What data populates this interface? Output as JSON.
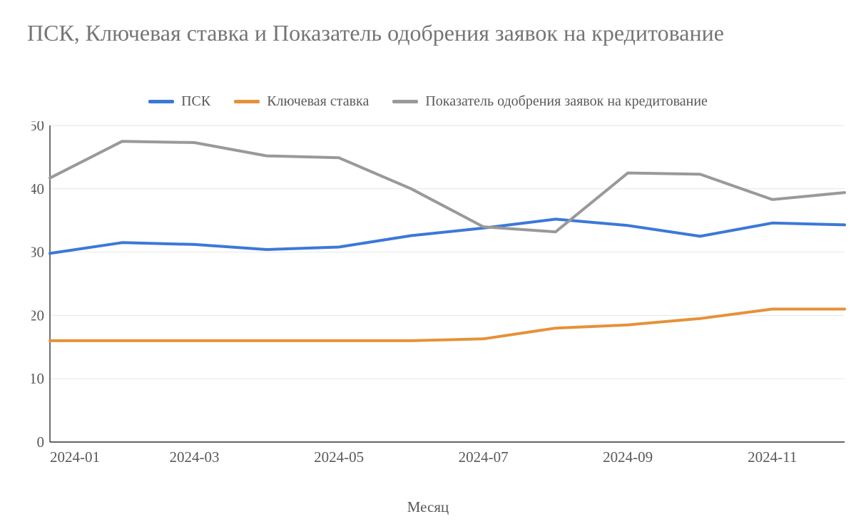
{
  "chart": {
    "type": "line",
    "title": "ПСК, Ключевая ставка и Показатель одобрения заявок на кредитование",
    "title_fontsize": 32,
    "title_color": "#757575",
    "background_color": "#ffffff",
    "font_family": "Georgia, 'Times New Roman', serif",
    "line_width": 4,
    "x": {
      "title": "Месяц",
      "categories": [
        "2024-01",
        "2024-02",
        "2024-03",
        "2024-04",
        "2024-05",
        "2024-06",
        "2024-07",
        "2024-08",
        "2024-09",
        "2024-10",
        "2024-11",
        "2024-12"
      ],
      "tick_every": 2,
      "tick_label_fontsize": 21,
      "axis_color": "#333333"
    },
    "y": {
      "min": 0,
      "max": 50,
      "tick_step": 10,
      "tick_label_fontsize": 21,
      "grid_color": "#e6e6e6",
      "axis_color": "#333333"
    },
    "legend": {
      "position": "top-center",
      "fontsize": 20,
      "label_color": "#595959"
    },
    "series": [
      {
        "key": "psk",
        "label": "ПСК",
        "color": "#3c78d8",
        "values": [
          29.8,
          31.5,
          31.2,
          30.4,
          30.8,
          32.6,
          33.8,
          35.2,
          34.2,
          32.5,
          34.6,
          34.3
        ]
      },
      {
        "key": "key_rate",
        "label": "Ключевая ставка",
        "color": "#e69138",
        "values": [
          16.0,
          16.0,
          16.0,
          16.0,
          16.0,
          16.0,
          16.3,
          18.0,
          18.5,
          19.5,
          21.0,
          21.0
        ]
      },
      {
        "key": "approval_rate",
        "label": "Показатель одобрения заявок на кредитование",
        "color": "#999999",
        "values": [
          41.7,
          47.5,
          47.3,
          45.2,
          44.9,
          40.0,
          34.0,
          33.2,
          42.5,
          42.3,
          38.3,
          39.4
        ]
      }
    ]
  }
}
